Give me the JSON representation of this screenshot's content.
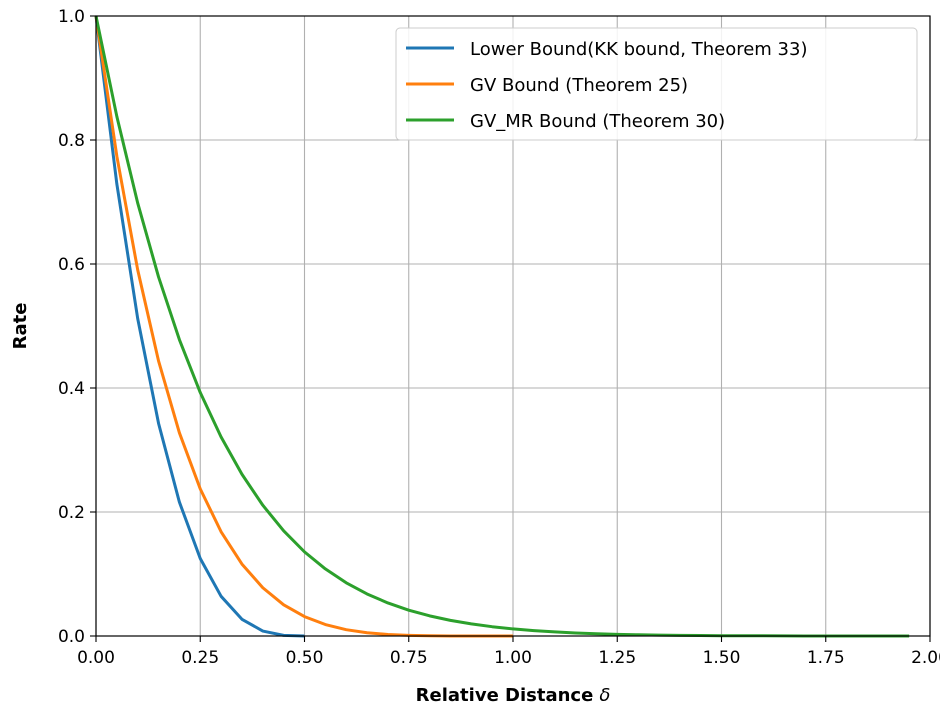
{
  "chart_data": {
    "type": "line",
    "xlabel": "Relative Distance",
    "xlabel_symbol": "δ",
    "ylabel": "Rate",
    "xlim": [
      0,
      2.0
    ],
    "ylim": [
      0,
      1.0
    ],
    "xticks": [
      "0.00",
      "0.25",
      "0.50",
      "0.75",
      "1.00",
      "1.25",
      "1.50",
      "1.75",
      "2.00"
    ],
    "yticks": [
      "0.0",
      "0.2",
      "0.4",
      "0.6",
      "0.8",
      "1.0"
    ],
    "grid": true,
    "legend_position": "top-right",
    "series": [
      {
        "name": "Lower Bound(KK bound, Theorem 33)",
        "color": "#1f77b4",
        "x": [
          0,
          0.05,
          0.1,
          0.15,
          0.2,
          0.25,
          0.3,
          0.35,
          0.4,
          0.45,
          0.5
        ],
        "y": [
          1.0,
          0.729,
          0.512,
          0.343,
          0.216,
          0.125,
          0.064,
          0.027,
          0.008,
          0.001,
          0.0
        ]
      },
      {
        "name": "GV Bound (Theorem 25)",
        "color": "#ff7f0e",
        "x": [
          0,
          0.05,
          0.1,
          0.15,
          0.2,
          0.25,
          0.3,
          0.35,
          0.4,
          0.45,
          0.5,
          0.55,
          0.6,
          0.65,
          0.7,
          0.75,
          0.8,
          0.85,
          0.9,
          0.95,
          1.0
        ],
        "y": [
          1.0,
          0.7738,
          0.5905,
          0.4437,
          0.3277,
          0.2373,
          0.1681,
          0.116,
          0.0778,
          0.0503,
          0.0313,
          0.0185,
          0.0102,
          0.0053,
          0.0024,
          0.001,
          0.0003,
          0.0001,
          0.0,
          0.0,
          0.0
        ]
      },
      {
        "name": "GV_MR Bound (Theorem 30)",
        "color": "#2ca02c",
        "x": [
          0,
          0.05,
          0.1,
          0.15,
          0.2,
          0.25,
          0.3,
          0.35,
          0.4,
          0.45,
          0.5,
          0.55,
          0.6,
          0.65,
          0.7,
          0.75,
          0.8,
          0.85,
          0.9,
          0.95,
          1.0,
          1.05,
          1.1,
          1.15,
          1.2,
          1.25,
          1.3,
          1.35,
          1.4,
          1.45,
          1.5,
          1.55,
          1.6,
          1.65,
          1.7,
          1.75,
          1.8,
          1.85,
          1.9,
          1.95
        ],
        "y": [
          1.0,
          0.8379,
          0.6983,
          0.5791,
          0.478,
          0.3927,
          0.3209,
          0.2609,
          0.2109,
          0.1696,
          0.1357,
          0.1082,
          0.0858,
          0.0678,
          0.0533,
          0.0417,
          0.0325,
          0.0252,
          0.0195,
          0.015,
          0.0114,
          0.0087,
          0.0066,
          0.0049,
          0.0037,
          0.0027,
          0.002,
          0.0015,
          0.0011,
          0.0008,
          0.0005,
          0.0004,
          0.0003,
          0.0002,
          0.0001,
          0.0001,
          0.0,
          0.0,
          0.0,
          0.0
        ]
      }
    ]
  }
}
